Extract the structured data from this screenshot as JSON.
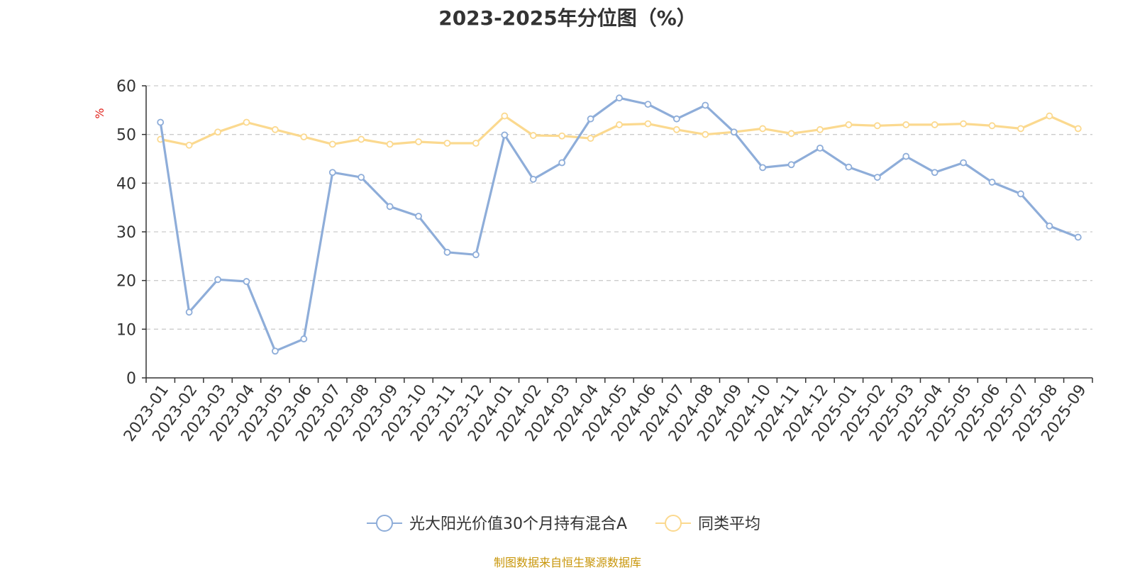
{
  "title": "2023-2025年分位图（%）",
  "source_note": "制图数据来自恒生聚源数据库",
  "colors": {
    "series_a": "#8eadd9",
    "series_b": "#fbd98f",
    "ylabel": "#e0201a",
    "grid": "#cccccc",
    "axis": "#333333"
  },
  "chart_data": {
    "type": "line",
    "title": "2023-2025年分位图（%）",
    "xlabel": "",
    "ylabel": "%",
    "ylim": [
      0,
      60
    ],
    "yticks": [
      0,
      10,
      20,
      30,
      40,
      50,
      60
    ],
    "grid": "horizontal dashed",
    "legend_position": "bottom",
    "categories": [
      "2023-01",
      "2023-02",
      "2023-03",
      "2023-04",
      "2023-05",
      "2023-06",
      "2023-07",
      "2023-08",
      "2023-09",
      "2023-10",
      "2023-11",
      "2023-12",
      "2024-01",
      "2024-02",
      "2024-03",
      "2024-04",
      "2024-05",
      "2024-06",
      "2024-07",
      "2024-08",
      "2024-09",
      "2024-10",
      "2024-11",
      "2024-12",
      "2025-01",
      "2025-02",
      "2025-03",
      "2025-04",
      "2025-05",
      "2025-06",
      "2025-07",
      "2025-08",
      "2025-09"
    ],
    "series": [
      {
        "name": "光大阳光价值30个月持有混合A",
        "values": [
          52.5,
          13.5,
          20.2,
          19.8,
          5.5,
          8.0,
          42.2,
          41.2,
          35.2,
          33.2,
          25.8,
          25.3,
          49.9,
          40.8,
          44.2,
          53.2,
          57.5,
          56.2,
          53.2,
          56.0,
          50.5,
          43.2,
          43.8,
          47.2,
          43.3,
          41.2,
          45.5,
          42.2,
          44.2,
          40.2,
          37.8,
          31.2,
          28.9
        ]
      },
      {
        "name": "同类平均",
        "values": [
          49.0,
          47.8,
          50.5,
          52.5,
          51.0,
          49.5,
          48.0,
          49.0,
          48.0,
          48.5,
          48.2,
          48.2,
          53.8,
          49.8,
          49.7,
          49.2,
          52.0,
          52.2,
          51.0,
          50.0,
          50.5,
          51.2,
          50.2,
          51.0,
          52.0,
          51.8,
          52.0,
          52.0,
          52.2,
          51.8,
          51.2,
          53.8,
          51.2
        ]
      }
    ]
  }
}
